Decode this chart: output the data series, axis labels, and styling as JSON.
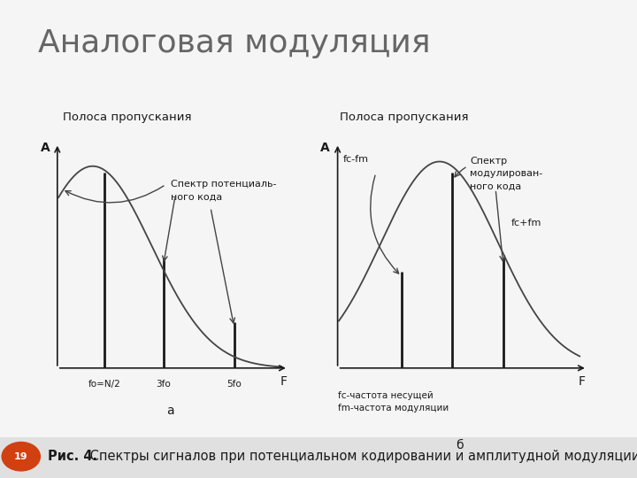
{
  "title": "Аналоговая модуляция",
  "title_fontsize": 26,
  "title_color": "#666666",
  "bg_color": "#f5f5f5",
  "caption": "Рис. 4. Спектры сигналов при потенциальном кодировании и амплитудной модуляции",
  "caption_fontsize": 10.5,
  "left_label_polosa": "Полоса пропускания",
  "right_label_polosa": "Полоса пропускания",
  "left_sublabel": "а",
  "right_sublabel": "б",
  "left_spectrum_label": "Спектр потенциаль-\nного кода",
  "right_spectrum_label": "Спектр\nмодулирован-\nного кода",
  "axis_label_A": "А",
  "axis_label_F": "F",
  "left_xtick_labels": [
    "fo=N/2",
    "3fo",
    "5fo"
  ],
  "right_xtick_labels_bottom": [
    "fc-fm",
    "fc+fm"
  ],
  "right_fclabel": "fc-fm",
  "right_fcpfm_label": "fc+fm",
  "right_xlabel_bottom": "fc-частота несущей\nfm-частота модуляции",
  "page_number": "19",
  "line_color": "#1a1a1a",
  "curve_color": "#444444",
  "text_color": "#1a1a1a"
}
